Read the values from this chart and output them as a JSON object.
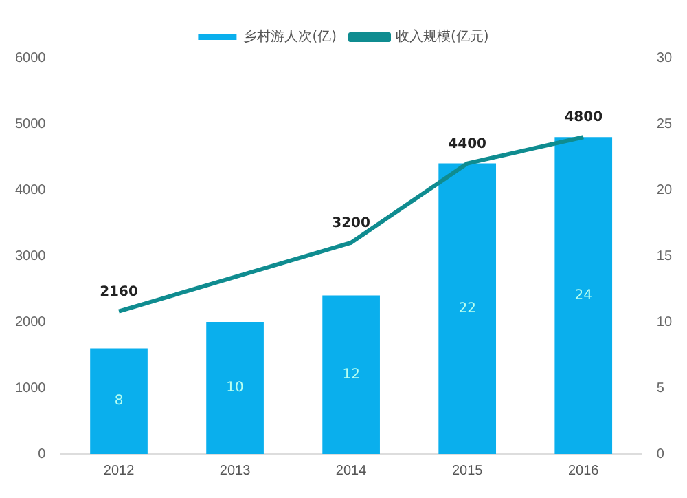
{
  "chart_data": {
    "type": "bar",
    "categories": [
      "2012",
      "2013",
      "2014",
      "2015",
      "2016"
    ],
    "series": [
      {
        "name": "乡村游人次(亿)",
        "axis": "y2",
        "color": "#0aafed",
        "values": [
          8,
          10,
          12,
          22,
          24
        ],
        "value_labels": [
          "8",
          "10",
          "12",
          "22",
          "24"
        ]
      },
      {
        "name": "收入规模(亿元)",
        "type": "line",
        "axis": "y",
        "color": "#0f8c90",
        "values": [
          2160,
          2680,
          3200,
          4400,
          4800
        ],
        "value_labels": [
          "2160",
          null,
          "3200",
          "4400",
          "4800"
        ]
      }
    ],
    "ylim": [
      0,
      6000
    ],
    "yticks": [
      0,
      1000,
      2000,
      3000,
      4000,
      5000,
      6000
    ],
    "y2lim": [
      0,
      30
    ],
    "y2ticks": [
      0,
      5,
      10,
      15,
      20,
      25,
      30
    ],
    "legend": "top",
    "grid": false,
    "marker": "none"
  }
}
